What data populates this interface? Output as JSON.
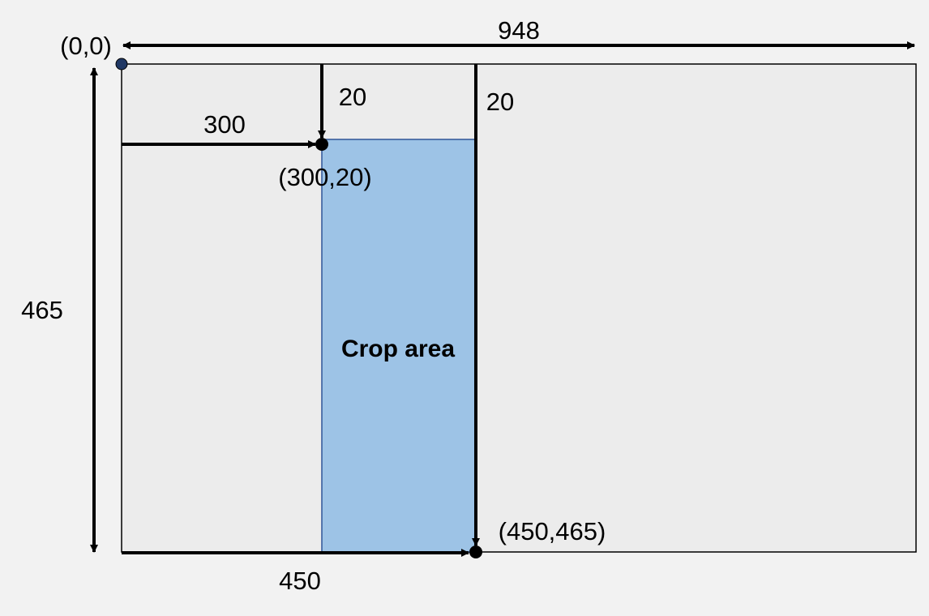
{
  "diagram": {
    "labels": {
      "origin": "(0,0)",
      "width": "948",
      "height": "465",
      "x_offset": "300",
      "y_offset_left": "20",
      "y_offset_right": "20",
      "top_left_point": "(300,20)",
      "bottom_right_point": "(450,465)",
      "x_end": "450",
      "crop_area": "Crop area"
    },
    "colors": {
      "background": "#f2f2f2",
      "image_fill": "#ececec",
      "crop_fill": "#9dc3e6",
      "crop_border": "#2f5597",
      "origin_dot": "#203864",
      "line": "#000000"
    }
  }
}
